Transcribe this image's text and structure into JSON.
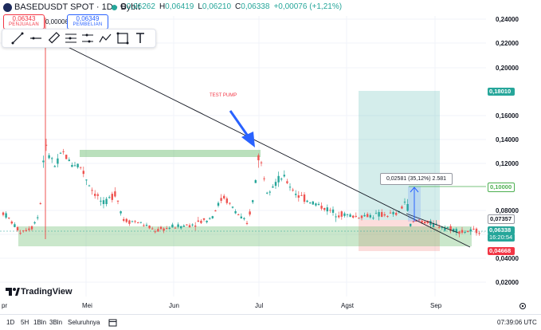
{
  "header": {
    "symbol": "BASEDUSDT SPOT · 1D · Bybit",
    "open_k": "O",
    "open_v": "0,06262",
    "high_k": "H",
    "high_v": "0,06419",
    "low_k": "L",
    "low_v": "0,06210",
    "close_k": "C",
    "close_v": "0,06338",
    "change": "+0,00076 (+1,21%)"
  },
  "trade": {
    "sell_price": "0,06343",
    "sell_label": "PENJUALAN",
    "spread": "0,00006",
    "buy_price": "0,06349",
    "buy_label": "PEMBELIAN"
  },
  "toolbar": {
    "tools": [
      "trend-line-icon",
      "horizontal-line-icon",
      "ruler-icon",
      "fib-icon",
      "pitchfork-icon",
      "path-icon",
      "rectangle-icon",
      "text-icon"
    ]
  },
  "price_axis": {
    "labels": [
      "0,24000",
      "0,22000",
      "0,20000",
      "0,16000",
      "0,14000",
      "0,12000",
      "0,08000",
      "0,06000",
      "0,04000",
      "0,02000"
    ]
  },
  "price_tags": {
    "tp": "0,18010",
    "mid": "0,10000",
    "last_close": "0,07357",
    "current": "0,06338",
    "countdown": "16:20:54",
    "stop": "0,04668"
  },
  "time_axis": {
    "labels": [
      "pr",
      "Mei",
      "Jun",
      "Jul",
      "Agst",
      "Sep"
    ]
  },
  "annotation": {
    "pump": "TEST PUMP"
  },
  "measure": {
    "text": "0,02581 (35,12%) 2.581"
  },
  "brand": {
    "text": "TradingView"
  },
  "bottom": {
    "ranges": [
      "1D",
      "5H",
      "1Bln",
      "3Bln",
      "Seluruhnya"
    ],
    "clock": "07:39:06 UTC"
  },
  "colors": {
    "up": "#26a69a",
    "down": "#ef5350",
    "blue": "#2962ff",
    "zone": "#a5d6a7"
  },
  "chart_data": {
    "type": "candlestick",
    "x_labels": [
      "pr",
      "Mei",
      "Jun",
      "Jul",
      "Agst",
      "Sep"
    ],
    "y_ticks": [
      0.02,
      0.04,
      0.06,
      0.08,
      0.1,
      0.12,
      0.14,
      0.16,
      0.2,
      0.22,
      0.24
    ],
    "last": 0.06338,
    "target": 0.1801,
    "stop": 0.04668,
    "resistance": 0.1,
    "measure_pct": "35,12%"
  }
}
